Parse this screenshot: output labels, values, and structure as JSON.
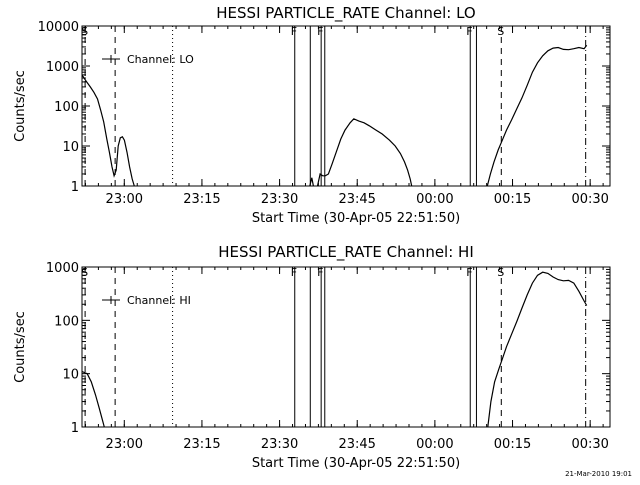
{
  "footer": "21-Mar-2010 19:01",
  "chart_data": [
    {
      "type": "line",
      "title": "HESSI PARTICLE_RATE Channel: LO",
      "xlabel": "Start Time (30-Apr-05 22:51:50)",
      "ylabel": "Counts/sec",
      "yscale": "log",
      "ylim": [
        1,
        10000
      ],
      "xlim_minutes": [
        0,
        102
      ],
      "x_ticks": [
        {
          "t": 8.17,
          "label": "23:00"
        },
        {
          "t": 23.17,
          "label": "23:15"
        },
        {
          "t": 38.17,
          "label": "23:30"
        },
        {
          "t": 53.17,
          "label": "23:45"
        },
        {
          "t": 68.17,
          "label": "00:00"
        },
        {
          "t": 83.17,
          "label": "00:15"
        },
        {
          "t": 98.17,
          "label": "00:30"
        }
      ],
      "y_ticks": [
        {
          "v": 1,
          "label": "1"
        },
        {
          "v": 10,
          "label": "10"
        },
        {
          "v": 100,
          "label": "100"
        },
        {
          "v": 1000,
          "label": "1000"
        },
        {
          "v": 10000,
          "label": "10000"
        }
      ],
      "legend": {
        "label": "Channel: LO",
        "position": "top-left"
      },
      "markers": [
        {
          "t": 0.6,
          "style": "dashed",
          "label": "S"
        },
        {
          "t": 6.4,
          "style": "dashed",
          "label": ""
        },
        {
          "t": 17.5,
          "style": "dotted",
          "label": ""
        },
        {
          "t": 41.1,
          "style": "solid",
          "label": "F"
        },
        {
          "t": 44.1,
          "style": "solid",
          "label": ""
        },
        {
          "t": 46.2,
          "style": "solid",
          "label": "F"
        },
        {
          "t": 46.9,
          "style": "solid",
          "label": ""
        },
        {
          "t": 75.0,
          "style": "solid",
          "label": "F"
        },
        {
          "t": 76.2,
          "style": "solid",
          "label": ""
        },
        {
          "t": 81.0,
          "style": "dashed",
          "label": "S"
        },
        {
          "t": 97.3,
          "style": "dashdot",
          "label": ""
        }
      ],
      "series": [
        {
          "segments": [
            [
              [
                0,
                600
              ],
              [
                0.8,
                420
              ],
              [
                1.6,
                300
              ],
              [
                2.3,
                220
              ],
              [
                3.0,
                150
              ],
              [
                3.6,
                80
              ],
              [
                4.2,
                40
              ],
              [
                4.8,
                15
              ],
              [
                5.3,
                7
              ],
              [
                5.8,
                3
              ],
              [
                6.2,
                1.8
              ],
              [
                6.6,
                2.5
              ],
              [
                7.0,
                10
              ],
              [
                7.4,
                16
              ],
              [
                7.8,
                17
              ],
              [
                8.2,
                14
              ],
              [
                8.7,
                7
              ],
              [
                9.2,
                3
              ],
              [
                9.7,
                1.5
              ],
              [
                10.1,
                1
              ]
            ],
            [
              [
                44.0,
                1
              ],
              [
                44.4,
                1.6
              ],
              [
                44.7,
                1
              ]
            ],
            [
              [
                45.5,
                1
              ],
              [
                46.0,
                2
              ],
              [
                46.5,
                1.8
              ],
              [
                47.0,
                1.8
              ],
              [
                47.6,
                2
              ],
              [
                48.3,
                3.5
              ],
              [
                49.1,
                7
              ],
              [
                50.0,
                15
              ],
              [
                50.8,
                25
              ],
              [
                51.8,
                38
              ],
              [
                52.5,
                48
              ],
              [
                53.5,
                42
              ],
              [
                54.5,
                38
              ],
              [
                55.5,
                32
              ],
              [
                56.8,
                25
              ],
              [
                58.0,
                20
              ],
              [
                59.4,
                14
              ],
              [
                60.5,
                10
              ],
              [
                61.5,
                6.5
              ],
              [
                62.3,
                4
              ],
              [
                62.9,
                2.5
              ],
              [
                63.4,
                1.5
              ],
              [
                63.7,
                1
              ]
            ],
            [
              [
                78.3,
                1
              ],
              [
                78.9,
                2
              ],
              [
                79.6,
                4
              ],
              [
                80.4,
                8
              ],
              [
                81.2,
                14
              ],
              [
                82.0,
                25
              ],
              [
                83.0,
                45
              ],
              [
                84.0,
                85
              ],
              [
                85.0,
                160
              ],
              [
                86.0,
                330
              ],
              [
                87.0,
                700
              ],
              [
                88.0,
                1200
              ],
              [
                89.0,
                1800
              ],
              [
                90.0,
                2400
              ],
              [
                91.0,
                2800
              ],
              [
                92.0,
                2900
              ],
              [
                93.0,
                2600
              ],
              [
                94.0,
                2550
              ],
              [
                95.0,
                2700
              ],
              [
                96.0,
                2900
              ],
              [
                97.0,
                2700
              ],
              [
                97.5,
                3300
              ]
            ]
          ]
        }
      ]
    },
    {
      "type": "line",
      "title": "HESSI PARTICLE_RATE Channel: HI",
      "xlabel": "Start Time (30-Apr-05 22:51:50)",
      "ylabel": "Counts/sec",
      "yscale": "log",
      "ylim": [
        1,
        1000
      ],
      "xlim_minutes": [
        0,
        102
      ],
      "x_ticks": [
        {
          "t": 8.17,
          "label": "23:00"
        },
        {
          "t": 23.17,
          "label": "23:15"
        },
        {
          "t": 38.17,
          "label": "23:30"
        },
        {
          "t": 53.17,
          "label": "23:45"
        },
        {
          "t": 68.17,
          "label": "00:00"
        },
        {
          "t": 83.17,
          "label": "00:15"
        },
        {
          "t": 98.17,
          "label": "00:30"
        }
      ],
      "y_ticks": [
        {
          "v": 1,
          "label": "1"
        },
        {
          "v": 10,
          "label": "10"
        },
        {
          "v": 100,
          "label": "100"
        },
        {
          "v": 1000,
          "label": "1000"
        }
      ],
      "legend": {
        "label": "Channel: HI",
        "position": "top-left"
      },
      "markers": [
        {
          "t": 0.6,
          "style": "dashed",
          "label": "S"
        },
        {
          "t": 6.4,
          "style": "dashed",
          "label": ""
        },
        {
          "t": 17.5,
          "style": "dotted",
          "label": ""
        },
        {
          "t": 41.1,
          "style": "solid",
          "label": "F"
        },
        {
          "t": 44.1,
          "style": "solid",
          "label": ""
        },
        {
          "t": 46.2,
          "style": "solid",
          "label": "F"
        },
        {
          "t": 46.9,
          "style": "solid",
          "label": ""
        },
        {
          "t": 75.0,
          "style": "solid",
          "label": "F"
        },
        {
          "t": 76.2,
          "style": "solid",
          "label": ""
        },
        {
          "t": 81.0,
          "style": "dashed",
          "label": "S"
        },
        {
          "t": 97.3,
          "style": "dashdot",
          "label": ""
        }
      ],
      "series": [
        {
          "segments": [
            [
              [
                0,
                11
              ],
              [
                1.0,
                10
              ],
              [
                1.8,
                7
              ],
              [
                2.6,
                4
              ],
              [
                3.3,
                2.3
              ],
              [
                3.9,
                1.4
              ],
              [
                4.3,
                1
              ]
            ],
            [
              [
                78.4,
                1
              ],
              [
                79.0,
                3
              ],
              [
                79.7,
                7
              ],
              [
                80.5,
                12
              ],
              [
                81.3,
                20
              ],
              [
                82.0,
                32
              ],
              [
                83.0,
                55
              ],
              [
                84.0,
                95
              ],
              [
                85.0,
                170
              ],
              [
                86.0,
                300
              ],
              [
                87.0,
                500
              ],
              [
                88.0,
                700
              ],
              [
                89.0,
                800
              ],
              [
                90.0,
                760
              ],
              [
                91.0,
                650
              ],
              [
                92.0,
                580
              ],
              [
                93.0,
                550
              ],
              [
                94.0,
                560
              ],
              [
                95.0,
                500
              ],
              [
                96.0,
                350
              ],
              [
                97.0,
                230
              ],
              [
                97.5,
                190
              ]
            ]
          ]
        }
      ]
    }
  ]
}
